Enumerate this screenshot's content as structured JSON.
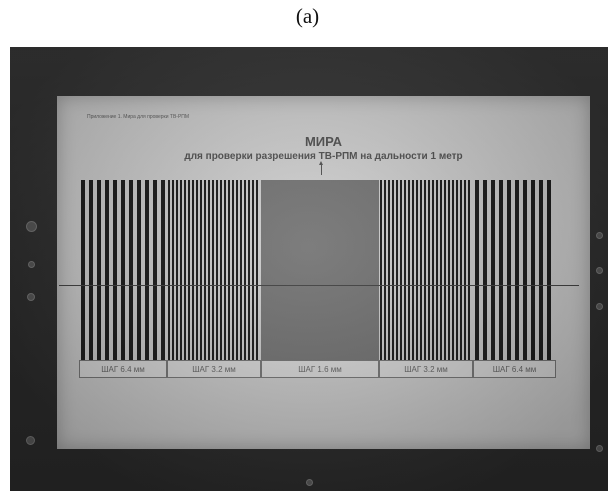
{
  "caption": "(a)",
  "screen": {
    "header_small": "Приложение 1. Мира для проверки ТВ-РПМ",
    "title": "МИРА",
    "subtitle": "для проверки разрешения ТВ-РПМ на дальности 1 метр"
  },
  "segments": [
    {
      "label": "ШАГ 6.4 мм",
      "pitch_mm": 6.4
    },
    {
      "label": "ШАГ 3.2 мм",
      "pitch_mm": 3.2
    },
    {
      "label": "ШАГ 1.6 мм",
      "pitch_mm": 1.6
    },
    {
      "label": "ШАГ 3.2 мм",
      "pitch_mm": 3.2
    },
    {
      "label": "ШАГ 6.4 мм",
      "pitch_mm": 6.4
    }
  ],
  "colors": {
    "bars": "#1c1c1c",
    "screen_bg": "#d4d4d4"
  }
}
